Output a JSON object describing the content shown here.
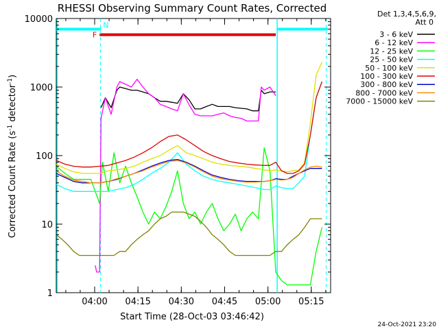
{
  "chart_data": {
    "type": "line",
    "title": "RHESSI Observing Summary Count Rates, Corrected",
    "xlabel": "Start Time (28-Oct-03 03:46:42)",
    "ylabel_main": "Corrected Count Rate (s",
    "ylabel_sup1": "-1",
    "ylabel_mid": " detector",
    "ylabel_sup2": "-1",
    "ylabel_end": ")",
    "yscale": "log",
    "ylim": [
      1,
      10000
    ],
    "xlim_min": [
      0,
      95
    ],
    "x_unit": "minutes after 03:46:42",
    "y_ticks": [
      {
        "value": 1,
        "label": "1"
      },
      {
        "value": 10,
        "label": "10"
      },
      {
        "value": 100,
        "label": "100"
      },
      {
        "value": 1000,
        "label": "1000"
      },
      {
        "value": 10000,
        "label": "10000"
      }
    ],
    "x_ticks": [
      {
        "value": 13.3,
        "label": "04:00"
      },
      {
        "value": 28.3,
        "label": "04:15"
      },
      {
        "value": 43.3,
        "label": "04:30"
      },
      {
        "value": 58.3,
        "label": "04:45"
      },
      {
        "value": 73.3,
        "label": "05:00"
      },
      {
        "value": 88.3,
        "label": "05:15"
      }
    ],
    "legend_header": [
      "Det 1,3,4,5,6,9,",
      "Att 0"
    ],
    "legend_placement": "right",
    "markers": {
      "F": {
        "label": "F",
        "x": 15,
        "x_end": 76,
        "y": 5800,
        "color": "#e00000"
      },
      "N": {
        "label": "N",
        "x": 15.5,
        "color": "#00ffff"
      },
      "cyan_bar_segments": [
        [
          0,
          15.5
        ],
        [
          76.5,
          94
        ]
      ],
      "cyan_bar_y": 7000,
      "dashed_vlines": [
        15.3,
        93.5
      ],
      "solid_vlines": [
        0.3,
        76.5
      ]
    },
    "series": [
      {
        "name": "3 - 6 keV",
        "color": "#000000",
        "x": [
          15.5,
          17,
          19,
          21,
          22,
          24,
          26,
          28,
          30,
          32,
          34,
          36,
          38,
          40,
          42,
          44,
          46,
          48,
          50,
          52,
          54,
          56,
          58,
          60,
          62,
          64,
          66,
          68,
          70,
          71,
          72,
          74,
          76
        ],
        "y": [
          500,
          700,
          500,
          900,
          1000,
          950,
          900,
          900,
          850,
          800,
          700,
          620,
          620,
          600,
          580,
          800,
          650,
          480,
          480,
          520,
          560,
          520,
          520,
          520,
          500,
          490,
          480,
          450,
          450,
          900,
          800,
          850,
          850
        ]
      },
      {
        "name": "6 - 12 keV",
        "color": "#ff00ff",
        "x": [
          13.5,
          14,
          15,
          15.5,
          17,
          19,
          21,
          22,
          24,
          26,
          28,
          30,
          32,
          34,
          36,
          38,
          40,
          42,
          44,
          46,
          48,
          50,
          52,
          54,
          56,
          58,
          60,
          62,
          64,
          66,
          68,
          70,
          71,
          72,
          74,
          76
        ],
        "y": [
          2.5,
          2,
          2,
          350,
          700,
          400,
          1000,
          1200,
          1100,
          1000,
          1300,
          1000,
          800,
          700,
          560,
          520,
          480,
          450,
          800,
          550,
          400,
          380,
          380,
          380,
          400,
          420,
          380,
          360,
          350,
          320,
          320,
          320,
          1000,
          900,
          1000,
          750
        ]
      },
      {
        "name": "12 - 25 keV",
        "color": "#00ff00",
        "x": [
          0,
          3,
          6,
          9,
          12,
          15,
          16,
          18,
          20,
          22,
          24,
          26,
          28,
          30,
          32,
          34,
          36,
          38,
          40,
          42,
          44,
          46,
          48,
          50,
          52,
          54,
          56,
          58,
          60,
          62,
          64,
          66,
          68,
          70,
          72,
          74,
          76,
          78,
          80,
          82,
          84,
          86,
          88,
          90,
          92
        ],
        "y": [
          70,
          55,
          45,
          45,
          45,
          20,
          80,
          30,
          110,
          40,
          70,
          40,
          25,
          15,
          10,
          15,
          12,
          18,
          30,
          60,
          20,
          12,
          15,
          10,
          15,
          20,
          12,
          8,
          10,
          14,
          8,
          12,
          15,
          12,
          130,
          60,
          2,
          1.5,
          1.3,
          1.3,
          1.3,
          1.3,
          1.3,
          4,
          9
        ]
      },
      {
        "name": "25 - 50 keV",
        "color": "#00ffff",
        "x": [
          0,
          3,
          6,
          9,
          12,
          15,
          18,
          21,
          24,
          27,
          30,
          33,
          36,
          39,
          42,
          45,
          48,
          51,
          54,
          57,
          60,
          63,
          66,
          69,
          72,
          74,
          76,
          78,
          80,
          82,
          84,
          86,
          88,
          90,
          92
        ],
        "y": [
          38,
          33,
          30,
          30,
          30,
          30,
          30,
          32,
          34,
          38,
          45,
          55,
          65,
          80,
          110,
          75,
          60,
          50,
          45,
          42,
          40,
          38,
          36,
          34,
          32,
          32,
          36,
          34,
          33,
          33,
          40,
          50,
          200,
          700,
          1200
        ]
      },
      {
        "name": "50 - 100 keV",
        "color": "#e0e000",
        "x": [
          0,
          3,
          6,
          9,
          12,
          15,
          18,
          21,
          24,
          27,
          30,
          33,
          36,
          39,
          42,
          45,
          48,
          51,
          54,
          57,
          60,
          63,
          66,
          69,
          72,
          74,
          76,
          78,
          80,
          82,
          84,
          86,
          88,
          90,
          92
        ],
        "y": [
          75,
          65,
          58,
          55,
          55,
          55,
          60,
          62,
          65,
          70,
          80,
          90,
          100,
          120,
          140,
          110,
          100,
          90,
          80,
          75,
          72,
          70,
          68,
          65,
          62,
          60,
          62,
          60,
          58,
          60,
          62,
          80,
          300,
          1500,
          2300
        ]
      },
      {
        "name": "100 - 300 keV",
        "color": "#e00000",
        "x": [
          0,
          3,
          6,
          9,
          12,
          15,
          18,
          21,
          24,
          27,
          30,
          33,
          36,
          39,
          42,
          45,
          48,
          51,
          54,
          57,
          60,
          63,
          66,
          69,
          72,
          74,
          76,
          78,
          80,
          82,
          84,
          86,
          88,
          90,
          92
        ],
        "y": [
          85,
          75,
          70,
          68,
          68,
          70,
          72,
          78,
          85,
          95,
          110,
          130,
          160,
          190,
          200,
          170,
          140,
          115,
          100,
          90,
          82,
          78,
          75,
          73,
          72,
          72,
          80,
          60,
          55,
          55,
          60,
          75,
          200,
          700,
          1200
        ]
      },
      {
        "name": "300 - 800 keV",
        "color": "#0000cc",
        "x": [
          0,
          3,
          6,
          9,
          12,
          15,
          18,
          21,
          24,
          27,
          30,
          33,
          36,
          39,
          42,
          45,
          48,
          51,
          54,
          57,
          60,
          63,
          66,
          69,
          72,
          74,
          76,
          78,
          80,
          82,
          84,
          86,
          88,
          90,
          92
        ],
        "y": [
          55,
          48,
          42,
          40,
          40,
          40,
          42,
          45,
          50,
          55,
          62,
          70,
          78,
          85,
          88,
          80,
          70,
          60,
          52,
          48,
          45,
          43,
          42,
          42,
          42,
          43,
          46,
          45,
          45,
          50,
          55,
          60,
          65,
          65,
          65
        ]
      },
      {
        "name": "800 - 7000 keV",
        "color": "#ff8c00",
        "x": [
          0,
          3,
          6,
          9,
          12,
          15,
          18,
          21,
          24,
          27,
          30,
          33,
          36,
          39,
          42,
          45,
          48,
          51,
          54,
          57,
          60,
          63,
          66,
          69,
          72,
          74,
          76,
          78,
          80,
          82,
          84,
          86,
          88,
          90,
          92
        ],
        "y": [
          60,
          50,
          44,
          42,
          40,
          40,
          42,
          46,
          50,
          55,
          60,
          68,
          75,
          82,
          85,
          78,
          68,
          58,
          50,
          46,
          44,
          42,
          41,
          41,
          42,
          43,
          45,
          44,
          45,
          48,
          55,
          62,
          68,
          70,
          68
        ]
      },
      {
        "name": "7000 - 15000 keV",
        "color": "#808000",
        "x": [
          0,
          2,
          4,
          6,
          8,
          10,
          12,
          14,
          16,
          18,
          20,
          22,
          24,
          26,
          28,
          30,
          32,
          34,
          36,
          38,
          40,
          42,
          44,
          46,
          48,
          50,
          52,
          54,
          56,
          58,
          60,
          62,
          64,
          66,
          68,
          70,
          72,
          74,
          76,
          78,
          80,
          82,
          84,
          86,
          88,
          90,
          92
        ],
        "y": [
          7,
          6,
          5,
          4,
          3.5,
          3.5,
          3.5,
          3.5,
          3.5,
          3.5,
          3.5,
          4,
          4,
          5,
          6,
          7,
          8,
          10,
          12,
          13,
          15,
          15,
          15,
          14,
          13,
          11,
          9,
          7,
          6,
          5,
          4,
          3.5,
          3.5,
          3.5,
          3.5,
          3.5,
          3.5,
          3.5,
          4,
          4,
          5,
          6,
          7,
          9,
          12,
          12,
          12
        ]
      }
    ],
    "footer_date": "24-Oct-2021 23:20"
  }
}
